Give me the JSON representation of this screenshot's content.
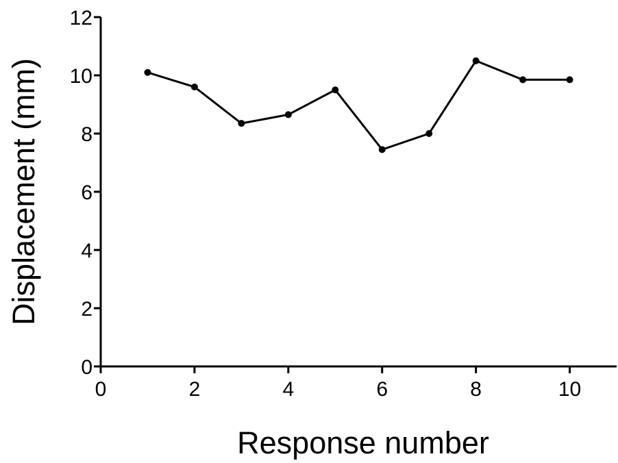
{
  "chart_data": {
    "type": "line",
    "title": "",
    "xlabel": "Response number",
    "ylabel": "Displacement (mm)",
    "xlim": [
      0,
      11
    ],
    "ylim": [
      0,
      12
    ],
    "xticks": [
      0,
      2,
      4,
      6,
      8,
      10
    ],
    "yticks": [
      0,
      2,
      4,
      6,
      8,
      10,
      12
    ],
    "grid": false,
    "legend": "none",
    "series": [
      {
        "color": "#000000",
        "marker": "circle",
        "points": [
          {
            "x": 1,
            "y": 10.1
          },
          {
            "x": 2,
            "y": 9.6
          },
          {
            "x": 3,
            "y": 8.35
          },
          {
            "x": 4,
            "y": 8.65
          },
          {
            "x": 5,
            "y": 9.5
          },
          {
            "x": 6,
            "y": 7.45
          },
          {
            "x": 7,
            "y": 8.0
          },
          {
            "x": 8,
            "y": 10.5
          },
          {
            "x": 9,
            "y": 9.85
          },
          {
            "x": 10,
            "y": 9.85
          }
        ]
      }
    ]
  }
}
